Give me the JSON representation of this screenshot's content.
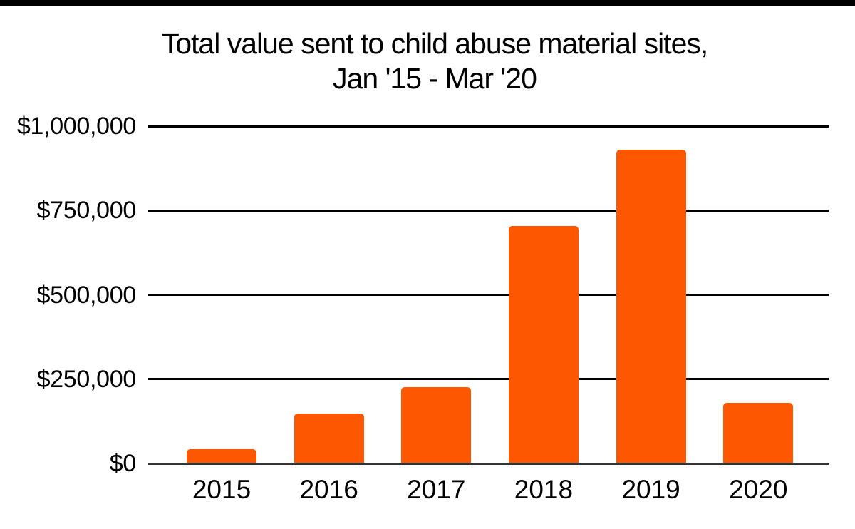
{
  "page": {
    "background_color": "#ffffff",
    "top_border_color": "#000000"
  },
  "chart_data": {
    "type": "bar",
    "title_lines": [
      "Total value sent to child abuse material sites,",
      "Jan '15 - Mar '20"
    ],
    "title": "Total value sent to child abuse material sites, Jan '15 - Mar '20",
    "categories": [
      "2015",
      "2016",
      "2017",
      "2018",
      "2019",
      "2020"
    ],
    "values": [
      42000,
      148000,
      226000,
      704000,
      930000,
      180000
    ],
    "xlabel": "",
    "ylabel": "",
    "ylim": [
      0,
      1000000
    ],
    "yticks": [
      {
        "value": 0,
        "label": "$0"
      },
      {
        "value": 250000,
        "label": "$250,000"
      },
      {
        "value": 500000,
        "label": "$500,000"
      },
      {
        "value": 750000,
        "label": "$750,000"
      },
      {
        "value": 1000000,
        "label": "$1,000,000"
      }
    ],
    "grid": true,
    "legend_position": "none",
    "bar_color": "#FD5702",
    "gridline_color": "#000000",
    "baseline_color": "#333333",
    "label_color": "#000000"
  }
}
